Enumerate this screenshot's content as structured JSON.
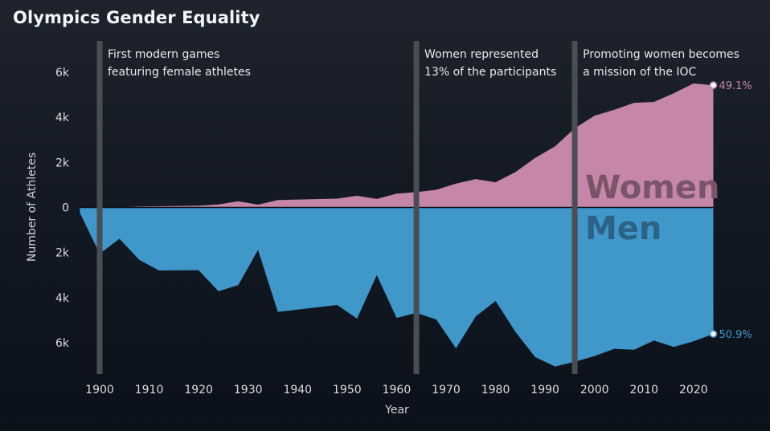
{
  "chart_data": {
    "type": "area",
    "title": "Olympics Gender Equality",
    "xlabel": "Year",
    "ylabel": "Number of Athletes",
    "xlim": [
      1896,
      2024
    ],
    "ylim": [
      -7200,
      7200
    ],
    "x_ticks": [
      1900,
      1910,
      1920,
      1930,
      1940,
      1950,
      1960,
      1970,
      1980,
      1990,
      2000,
      2010,
      2020
    ],
    "y_ticks": [
      6000,
      4000,
      2000,
      0,
      -2000,
      -4000,
      -6000
    ],
    "y_tick_labels": [
      "6k",
      "4k",
      "2k",
      "0",
      "2k",
      "4k",
      "6k"
    ],
    "series": [
      {
        "name": "Women",
        "color": "#c586aa",
        "label_color": "#7a5468",
        "end_label": "49.1%",
        "x": [
          1896,
          1900,
          1904,
          1908,
          1912,
          1920,
          1924,
          1928,
          1932,
          1936,
          1948,
          1952,
          1956,
          1960,
          1964,
          1968,
          1972,
          1976,
          1980,
          1984,
          1988,
          1992,
          1996,
          2000,
          2004,
          2008,
          2012,
          2016,
          2020,
          2024
        ],
        "values": [
          0,
          22,
          6,
          44,
          53,
          77,
          135,
          277,
          126,
          331,
          390,
          519,
          376,
          610,
          678,
          781,
          1058,
          1260,
          1115,
          1566,
          2194,
          2704,
          3512,
          4069,
          4329,
          4637,
          4676,
          5059,
          5494,
          5417
        ]
      },
      {
        "name": "Men",
        "color": "#4097c9",
        "label_color": "#2d6287",
        "end_label": "50.9%",
        "x": [
          1896,
          1900,
          1904,
          1908,
          1912,
          1920,
          1924,
          1928,
          1932,
          1936,
          1948,
          1952,
          1956,
          1960,
          1964,
          1968,
          1972,
          1976,
          1980,
          1984,
          1988,
          1992,
          1996,
          2000,
          2004,
          2008,
          2012,
          2016,
          2020,
          2024
        ],
        "values": [
          -241,
          -2049,
          -1388,
          -2323,
          -2790,
          -2779,
          -3712,
          -3439,
          -1883,
          -4628,
          -4319,
          -4925,
          -2998,
          -4895,
          -4671,
          -4961,
          -6240,
          -4824,
          -4144,
          -5509,
          -6628,
          -7045,
          -6839,
          -6582,
          -6262,
          -6305,
          -5892,
          -6179,
          -5929,
          -5603
        ]
      }
    ],
    "annotations": [
      {
        "x": 1900,
        "lines": [
          "First modern games",
          "featuring female athletes"
        ]
      },
      {
        "x": 1964,
        "lines": [
          "Women represented",
          "13% of the participants"
        ]
      },
      {
        "x": 1996,
        "lines": [
          "Promoting women becomes",
          "a mission of the IOC"
        ]
      }
    ],
    "grid": false,
    "legend": "none"
  }
}
